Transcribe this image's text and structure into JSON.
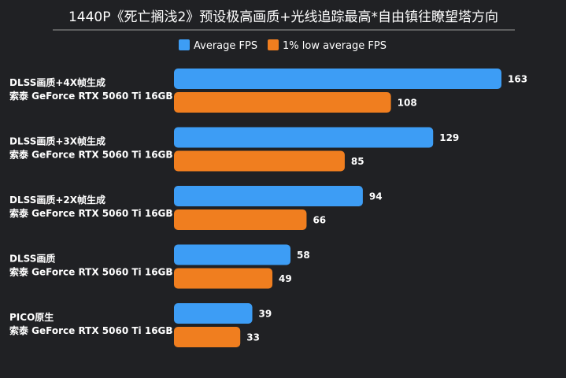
{
  "chart_data": {
    "type": "bar",
    "orientation": "horizontal",
    "title": "1440P《死亡搁浅2》预设极高画质+光线追踪最高*自由镇往瞭望塔方向",
    "legend_position": "top-center",
    "xlim": [
      0,
      170
    ],
    "grid": false,
    "categories": [
      {
        "line1": "DLSS画质+4X帧生成",
        "line2": "索泰 GeForce RTX 5060 Ti 16GB"
      },
      {
        "line1": "DLSS画质+3X帧生成",
        "line2": "索泰 GeForce RTX 5060 Ti 16GB"
      },
      {
        "line1": "DLSS画质+2X帧生成",
        "line2": "索泰 GeForce RTX 5060 Ti 16GB"
      },
      {
        "line1": "DLSS画质",
        "line2": "索泰 GeForce RTX 5060 Ti 16GB"
      },
      {
        "line1": "PICO原生",
        "line2": "索泰 GeForce RTX 5060 Ti 16GB"
      }
    ],
    "series": [
      {
        "name": "Average FPS",
        "color": "#3d9df5",
        "values": [
          163,
          129,
          94,
          58,
          39
        ]
      },
      {
        "name": "1% low average FPS",
        "color": "#f07e1f",
        "values": [
          108,
          85,
          66,
          49,
          33
        ]
      }
    ]
  },
  "colors": {
    "background": "#202124",
    "text": "#ffffff",
    "title_rule": "#9a9a9a"
  }
}
